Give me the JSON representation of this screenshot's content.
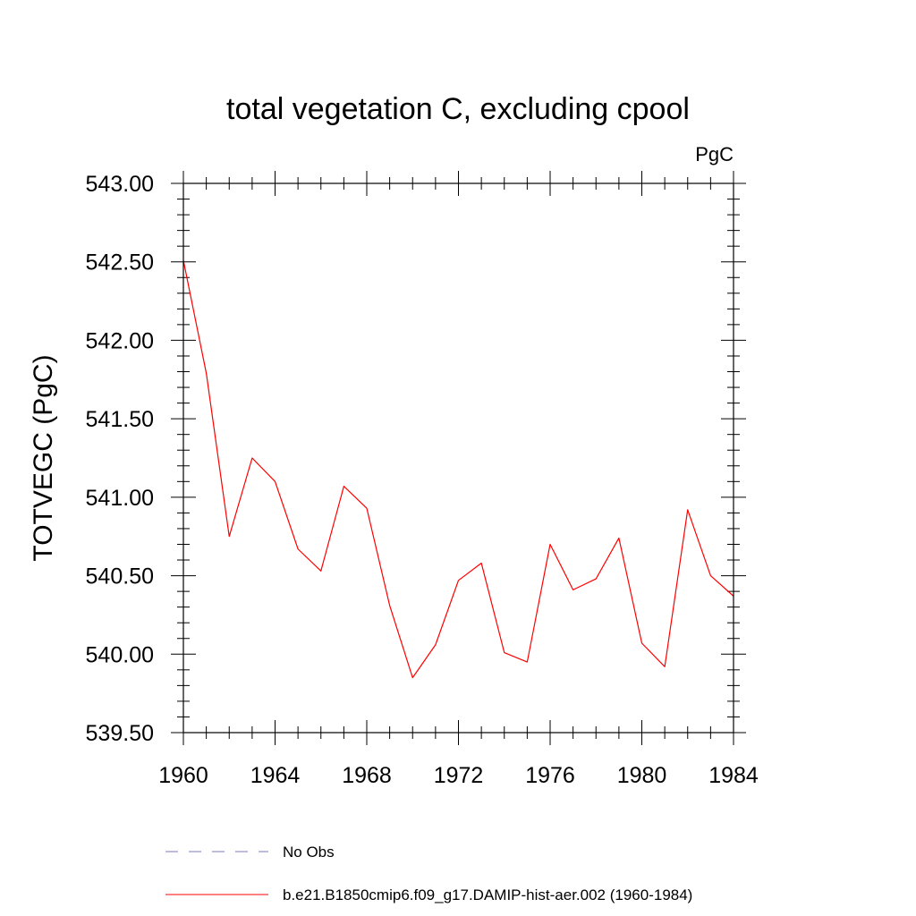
{
  "chart_data": {
    "type": "line",
    "title": "total vegetation C, excluding cpool",
    "units": "PgC",
    "xlabel": "",
    "ylabel": "TOTVEGC  (PgC)",
    "xlim": [
      1960,
      1984
    ],
    "ylim": [
      539.5,
      543.0
    ],
    "x_ticks": [
      1960,
      1964,
      1968,
      1972,
      1976,
      1980,
      1984
    ],
    "x_tick_labels": [
      "1960",
      "1964",
      "1968",
      "1972",
      "1976",
      "1980",
      "1984"
    ],
    "y_ticks": [
      539.5,
      540.0,
      540.5,
      541.0,
      541.5,
      542.0,
      542.5,
      543.0
    ],
    "y_tick_labels": [
      "539.50",
      "540.00",
      "540.50",
      "541.00",
      "541.50",
      "542.00",
      "542.50",
      "543.00"
    ],
    "grid": false,
    "legend_position": "bottom",
    "legend": [
      {
        "label": "No Obs",
        "style": "dashed",
        "color": "#7b7bbf"
      },
      {
        "label": "b.e21.B1850cmip6.f09_g17.DAMIP-hist-aer.002 (1960-1984)",
        "style": "solid",
        "color": "#ff0000"
      }
    ],
    "series": [
      {
        "name": "b.e21.B1850cmip6.f09_g17.DAMIP-hist-aer.002 (1960-1984)",
        "color": "#ff0000",
        "x": [
          1960,
          1961,
          1962,
          1963,
          1964,
          1965,
          1966,
          1967,
          1968,
          1969,
          1970,
          1971,
          1972,
          1973,
          1974,
          1975,
          1976,
          1977,
          1978,
          1979,
          1980,
          1981,
          1982,
          1983,
          1984
        ],
        "y": [
          542.51,
          541.79,
          540.75,
          541.25,
          541.1,
          540.67,
          540.53,
          541.07,
          540.93,
          540.31,
          539.85,
          540.06,
          540.47,
          540.58,
          540.01,
          539.95,
          540.7,
          540.41,
          540.48,
          540.74,
          540.07,
          539.92,
          540.92,
          540.5,
          540.37
        ]
      }
    ]
  }
}
